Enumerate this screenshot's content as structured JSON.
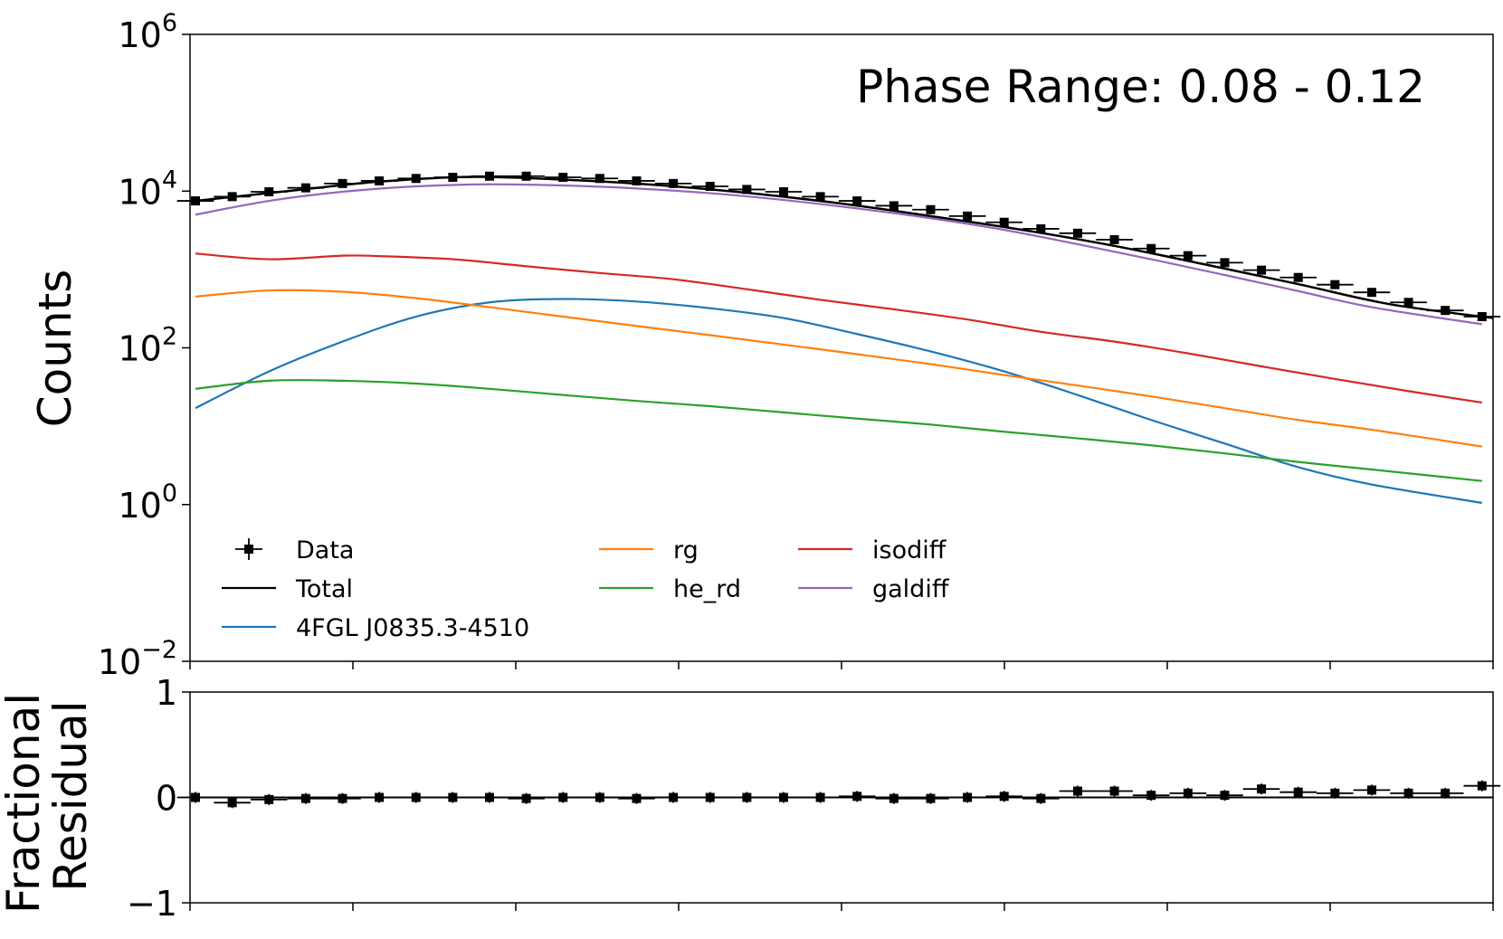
{
  "chart_data": [
    {
      "type": "line",
      "panel": "spectrum",
      "ylabel": "Counts",
      "yscale": "log",
      "ylim": [
        0.01,
        1000000
      ],
      "yticks": [
        {
          "value": 0.01,
          "base": "10",
          "exp": "−2"
        },
        {
          "value": 1,
          "base": "10",
          "exp": "0"
        },
        {
          "value": 100,
          "base": "10",
          "exp": "2"
        },
        {
          "value": 10000,
          "base": "10",
          "exp": "4"
        },
        {
          "value": 1000000,
          "base": "10",
          "exp": "6"
        }
      ],
      "xlim": [
        0,
        35.3
      ],
      "annotation": "Phase Range: 0.08 - 0.12",
      "legend_placement": "lower-left",
      "data_series": {
        "name": "Data",
        "color": "#000000",
        "x": [
          0,
          1,
          2,
          3,
          4,
          5,
          6,
          7,
          8,
          9,
          10,
          11,
          12,
          13,
          14,
          15,
          16,
          17,
          18,
          19,
          20,
          21,
          22,
          23,
          24,
          25,
          26,
          27,
          28,
          29,
          30,
          31,
          32,
          33,
          34,
          35
        ],
        "y": [
          7500,
          8500,
          9800,
          11000,
          12500,
          13500,
          14500,
          15000,
          15500,
          15500,
          15000,
          14500,
          13500,
          12500,
          11500,
          10500,
          9800,
          8500,
          7500,
          6500,
          5800,
          4800,
          4000,
          3300,
          2900,
          2400,
          1850,
          1500,
          1220,
          980,
          790,
          640,
          510,
          380,
          300,
          250
        ]
      },
      "series": [
        {
          "name": "Total",
          "color": "#000000",
          "x": [
            0,
            2.5,
            5,
            7.5,
            10,
            12.5,
            15,
            17.5,
            20,
            22.5,
            25,
            27.5,
            30,
            32.5,
            35.3
          ],
          "y": [
            7500,
            10000,
            13200,
            15200,
            14000,
            12000,
            9500,
            7000,
            4800,
            3200,
            2000,
            1150,
            650,
            360,
            240
          ]
        },
        {
          "name": "4FGL J0835.3-4510",
          "color": "#1f77b4",
          "x": [
            0,
            2,
            4,
            6,
            8,
            10,
            12,
            14,
            16,
            18,
            20,
            22,
            24,
            26,
            28,
            30,
            32,
            35
          ],
          "y": [
            17,
            50,
            120,
            250,
            380,
            420,
            390,
            320,
            240,
            150,
            90,
            50,
            25,
            12,
            6,
            3,
            1.8,
            1.05
          ]
        },
        {
          "name": "rg",
          "color": "#ff7f0e",
          "x": [
            0,
            2,
            4,
            6,
            8,
            10,
            12,
            14,
            16,
            18,
            20,
            22,
            24,
            26,
            28,
            30,
            32,
            35
          ],
          "y": [
            450,
            540,
            520,
            430,
            330,
            250,
            190,
            145,
            110,
            83,
            62,
            45,
            33,
            24,
            17,
            12,
            9,
            5.5
          ]
        },
        {
          "name": "he_rd",
          "color": "#2ca02c",
          "x": [
            0,
            2,
            4,
            6,
            8,
            10,
            12,
            14,
            16,
            18,
            20,
            22,
            24,
            26,
            28,
            30,
            32,
            35
          ],
          "y": [
            30,
            38,
            38,
            35,
            30,
            25,
            21,
            18,
            15,
            12.5,
            10.5,
            8.5,
            7,
            5.7,
            4.5,
            3.5,
            2.8,
            2
          ]
        },
        {
          "name": "isodiff",
          "color": "#d62728",
          "x": [
            0,
            2,
            4,
            5,
            7,
            9,
            11,
            13,
            15,
            17,
            19,
            21,
            23,
            25,
            27,
            29,
            31,
            33,
            35
          ],
          "y": [
            1600,
            1350,
            1500,
            1480,
            1350,
            1100,
            900,
            750,
            560,
            410,
            310,
            230,
            160,
            120,
            85,
            58,
            40,
            28,
            20
          ]
        },
        {
          "name": "galdiff",
          "color": "#9467bd",
          "x": [
            0,
            2,
            4,
            6,
            8,
            10,
            12,
            14,
            16,
            18,
            20,
            22,
            24,
            26,
            28,
            30,
            32,
            35
          ],
          "y": [
            5000,
            7500,
            9800,
            11500,
            12200,
            11800,
            10800,
            9400,
            7700,
            6000,
            4500,
            3200,
            2100,
            1350,
            850,
            530,
            330,
            200
          ]
        }
      ],
      "legend": [
        {
          "label": "Data",
          "kind": "errorbar",
          "color": "#000000"
        },
        {
          "label": "Total",
          "kind": "line",
          "color": "#000000"
        },
        {
          "label": "4FGL J0835.3-4510",
          "kind": "line",
          "color": "#1f77b4"
        },
        {
          "label": "rg",
          "kind": "line",
          "color": "#ff7f0e"
        },
        {
          "label": "he_rd",
          "kind": "line",
          "color": "#2ca02c"
        },
        {
          "label": "isodiff",
          "kind": "line",
          "color": "#d62728"
        },
        {
          "label": "galdiff",
          "kind": "line",
          "color": "#9467bd"
        }
      ]
    },
    {
      "type": "scatter",
      "panel": "residual",
      "ylabel_lines": [
        "Fractional",
        "Residual"
      ],
      "ylim": [
        -1,
        1
      ],
      "yticks": [
        {
          "value": 1,
          "label": "1"
        },
        {
          "value": 0,
          "label": "0"
        },
        {
          "value": -1,
          "label": "−1"
        }
      ],
      "xlim": [
        0,
        35.3
      ],
      "reference_line": 0,
      "x": [
        0,
        1,
        2,
        3,
        4,
        5,
        6,
        7,
        8,
        9,
        10,
        11,
        12,
        13,
        14,
        15,
        16,
        17,
        18,
        19,
        20,
        21,
        22,
        23,
        24,
        25,
        26,
        27,
        28,
        29,
        30,
        31,
        32,
        33,
        34,
        35
      ],
      "y": [
        0.0,
        -0.05,
        -0.02,
        -0.01,
        -0.01,
        0.0,
        0.0,
        0.0,
        0.0,
        -0.01,
        0.0,
        0.0,
        -0.01,
        0.0,
        0.0,
        0.0,
        0.0,
        0.0,
        0.01,
        -0.01,
        -0.01,
        0.0,
        0.01,
        -0.01,
        0.06,
        0.06,
        0.02,
        0.04,
        0.02,
        0.08,
        0.05,
        0.04,
        0.07,
        0.04,
        0.04,
        0.11
      ]
    }
  ],
  "x_tick_count": 9
}
